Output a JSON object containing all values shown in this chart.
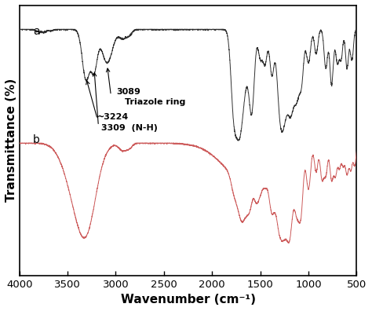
{
  "xlabel": "Wavenumber (cm⁻¹)",
  "ylabel": "Transmittance (%)",
  "xlim": [
    4000,
    500
  ],
  "ylim": [
    0,
    1
  ],
  "curve_a_color": "#303030",
  "curve_b_color": "#cd5c5c",
  "bg_color": "#1a1a1a",
  "axes_face_color": "#1a1a1a",
  "text_color": "#000000",
  "ann_text_color": "#1a1a1a",
  "label_a": "a",
  "label_b": "b",
  "ann1_text": "3089",
  "ann2_text": "Triazole ring",
  "ann3_text": "~3224",
  "ann4_text": "3309  (N-H)",
  "xticks": [
    4000,
    3500,
    3000,
    2500,
    2000,
    1500,
    1000,
    500
  ],
  "xlabel_fontsize": 11,
  "ylabel_fontsize": 11
}
